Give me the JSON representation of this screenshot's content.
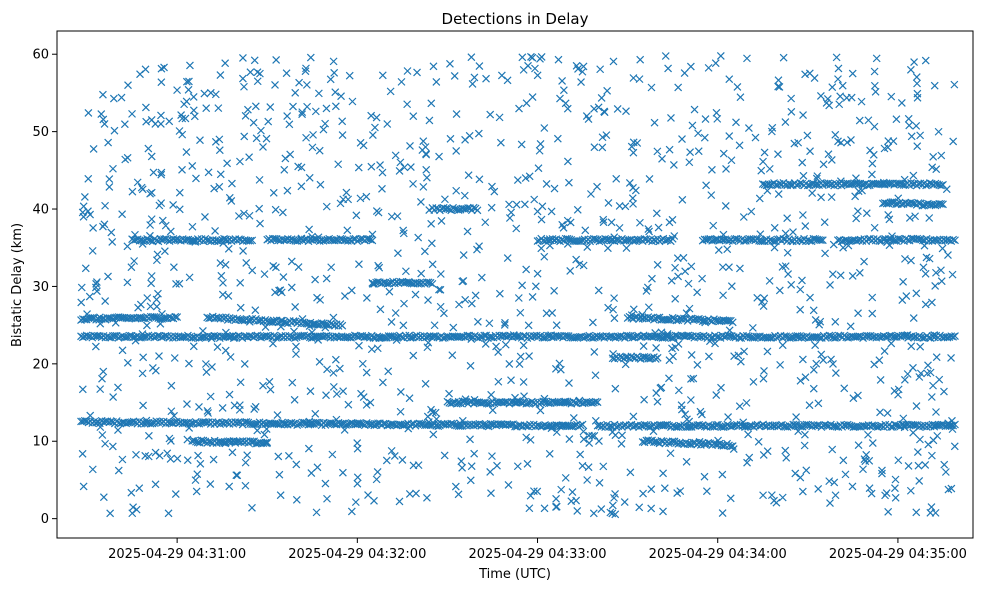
{
  "chart_data": {
    "type": "scatter",
    "title": "Detections in Delay",
    "xlabel": "Time (UTC)",
    "ylabel": "Bistatic Delay (km)",
    "xlim": [
      "2025-04-29 04:30:20",
      "2025-04-29 04:35:25"
    ],
    "ylim": [
      -2.5,
      63
    ],
    "x_ticks": [
      "2025-04-29 04:31:00",
      "2025-04-29 04:32:00",
      "2025-04-29 04:33:00",
      "2025-04-29 04:34:00",
      "2025-04-29 04:35:00"
    ],
    "y_ticks": [
      0,
      10,
      20,
      30,
      40,
      50,
      60
    ],
    "grid": false,
    "marker": "x",
    "color": "#1f77b4",
    "series": [
      {
        "tracks": [
          {
            "t0": "04:30:28",
            "t1": "04:35:19",
            "y0": 23.5,
            "y1": 23.5
          },
          {
            "t0": "04:30:28",
            "t1": "04:32:00",
            "y0": 12.5,
            "y1": 12.2
          },
          {
            "t0": "04:32:00",
            "t1": "04:33:15",
            "y0": 12.2,
            "y1": 12.0
          },
          {
            "t0": "04:33:20",
            "t1": "04:35:19",
            "y0": 12.0,
            "y1": 12.0
          },
          {
            "t0": "04:32:30",
            "t1": "04:33:20",
            "y0": 15.0,
            "y1": 15.0
          },
          {
            "t0": "04:30:45",
            "t1": "04:31:25",
            "y0": 36.0,
            "y1": 36.0
          },
          {
            "t0": "04:31:30",
            "t1": "04:32:05",
            "y0": 36.0,
            "y1": 36.0
          },
          {
            "t0": "04:33:00",
            "t1": "04:33:45",
            "y0": 36.0,
            "y1": 36.0
          },
          {
            "t0": "04:33:55",
            "t1": "04:34:35",
            "y0": 36.0,
            "y1": 36.0
          },
          {
            "t0": "04:34:40",
            "t1": "04:35:19",
            "y0": 36.0,
            "y1": 36.0
          },
          {
            "t0": "04:34:15",
            "t1": "04:35:15",
            "y0": 43.2,
            "y1": 43.2
          },
          {
            "t0": "04:30:28",
            "t1": "04:31:00",
            "y0": 25.8,
            "y1": 26.0
          },
          {
            "t0": "04:31:10",
            "t1": "04:31:55",
            "y0": 26.0,
            "y1": 25.0
          },
          {
            "t0": "04:33:30",
            "t1": "04:34:05",
            "y0": 26.0,
            "y1": 25.5
          },
          {
            "t0": "04:33:35",
            "t1": "04:34:05",
            "y0": 10.0,
            "y1": 9.5
          },
          {
            "t0": "04:31:05",
            "t1": "04:31:30",
            "y0": 10.0,
            "y1": 9.8
          },
          {
            "t0": "04:33:25",
            "t1": "04:33:40",
            "y0": 20.8,
            "y1": 20.8
          },
          {
            "t0": "04:32:25",
            "t1": "04:32:40",
            "y0": 40.0,
            "y1": 40.0
          },
          {
            "t0": "04:32:05",
            "t1": "04:32:25",
            "y0": 30.5,
            "y1": 30.5
          },
          {
            "t0": "04:34:55",
            "t1": "04:35:15",
            "y0": 40.8,
            "y1": 40.5
          }
        ],
        "scattered_range": {
          "t0": "04:30:28",
          "t1": "04:35:19",
          "y0": 0.5,
          "y1": 59.8
        }
      }
    ]
  }
}
